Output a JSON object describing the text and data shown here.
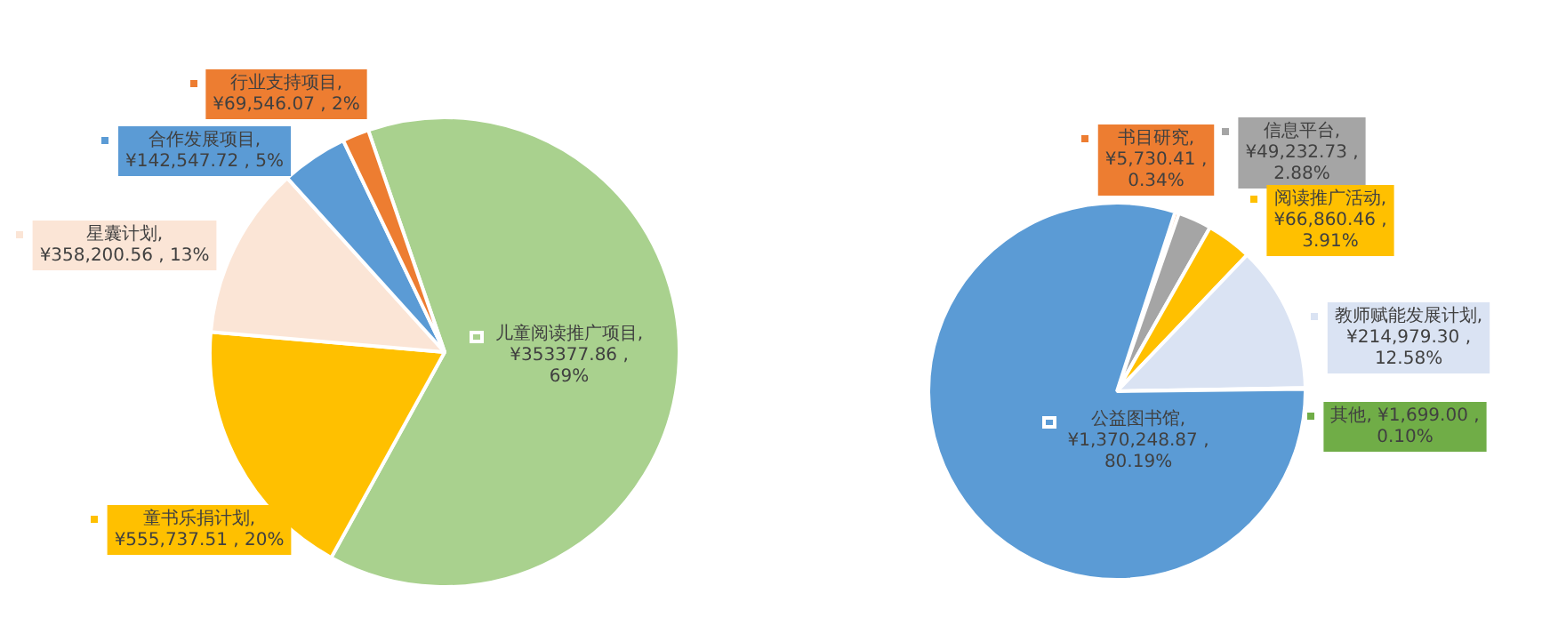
{
  "chart_data": [
    {
      "type": "pie",
      "categories": [
        "儿童阅读推广项目",
        "童书乐捐计划",
        "星囊计划",
        "合作发展项目",
        "行业支持项目"
      ],
      "values": [
        69,
        20,
        13,
        5,
        2
      ],
      "colors": [
        "#a9d18e",
        "#ffc000",
        "#fbe5d6",
        "#5b9bd5",
        "#ed7d31"
      ],
      "value_labels": [
        ", ¥353377.86 , 69%",
        ", ¥555,737.51 , 20%",
        ", ¥358,200.56 , 13%",
        ", ¥142,547.72 , 5%",
        ", ¥69,546.07 , 2%"
      ],
      "legend": true
    },
    {
      "type": "pie",
      "categories": [
        "书目研究",
        "信息平台",
        "阅读推广活动",
        "教师赋能发展计划",
        "其他",
        "公益图书馆"
      ],
      "values": [
        0.34,
        2.88,
        3.91,
        12.58,
        0.1,
        80.19
      ],
      "colors": [
        "#ed7d31",
        "#a5a5a5",
        "#ffc000",
        "#dae3f3",
        "#70ad47",
        "#5b9bd5"
      ],
      "value_labels": [
        ", ¥5,730.41 , 0.34%",
        ", ¥49,232.73 , 2.88%",
        ", ¥66,860.46 , 3.91%",
        ", ¥214,979.30 , 12.58%",
        ", ¥1,699.00 , 0.10%",
        ", ¥1,370,248.87 , 80.19%"
      ],
      "legend": true
    }
  ]
}
